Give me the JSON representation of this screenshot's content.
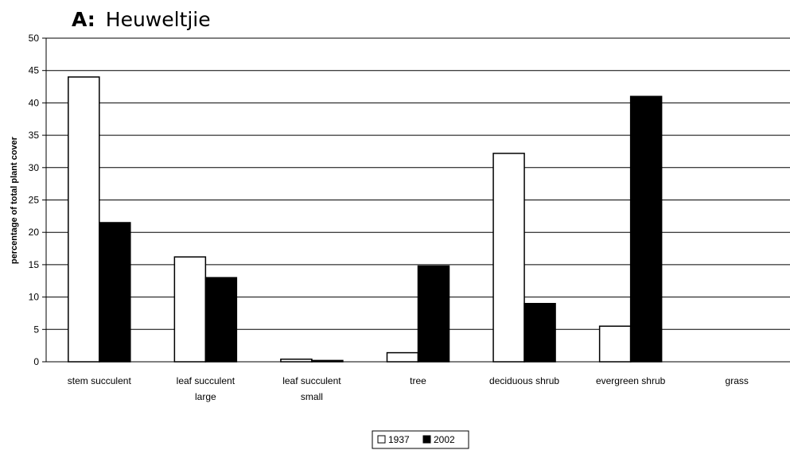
{
  "chart_data": {
    "type": "bar",
    "title_prefix": "A:",
    "title": "Heuweltjie",
    "xlabel": "",
    "ylabel": "percentage of total plant cover",
    "ylim": [
      0,
      50
    ],
    "yticks": [
      0,
      5,
      10,
      15,
      20,
      25,
      30,
      35,
      40,
      45,
      50
    ],
    "grid": true,
    "legend_position": "bottom",
    "categories": [
      [
        "stem succulent"
      ],
      [
        "leaf succulent",
        "large"
      ],
      [
        "leaf succulent",
        "small"
      ],
      [
        "tree"
      ],
      [
        "deciduous shrub"
      ],
      [
        "evergreen shrub"
      ],
      [
        "grass"
      ]
    ],
    "series": [
      {
        "name": "1937",
        "color": "#ffffff",
        "values": [
          44,
          16.2,
          0.4,
          1.4,
          32.2,
          5.5,
          0
        ]
      },
      {
        "name": "2002",
        "color": "#000000",
        "values": [
          21.5,
          13,
          0.2,
          14.8,
          9,
          41,
          0
        ]
      }
    ]
  }
}
